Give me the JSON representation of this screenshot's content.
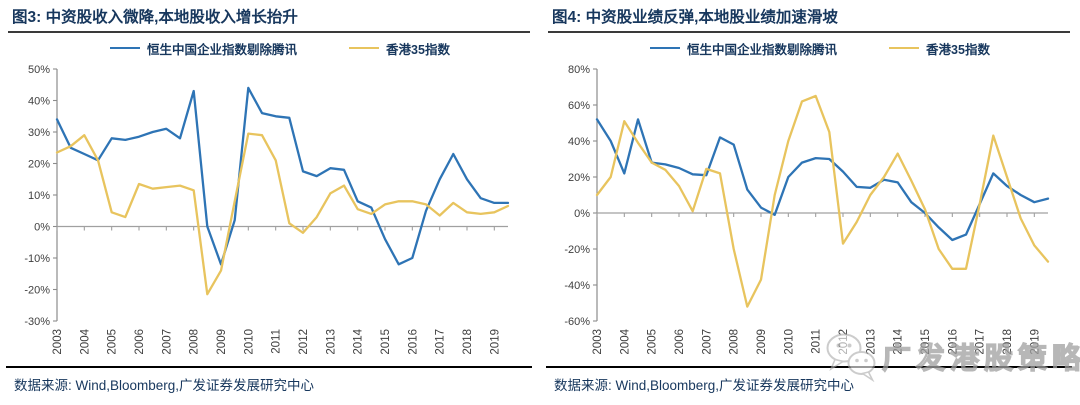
{
  "colors": {
    "blue_series": "#2E74B5",
    "yellow_series": "#E8C45E",
    "title_navy": "#17375D",
    "axis_line": "#8C8C8C",
    "zero_line": "#A0A0A0",
    "tick_label": "#3F3F3F",
    "separator_black": "#000000",
    "watermark_gray": "#9F9F9F"
  },
  "watermark": {
    "icon": "wechat-logo-icon",
    "text": "广发港股策略"
  },
  "chart_data": [
    {
      "type": "line",
      "title": "图3: 中资股收入微降,本地股收入增长抬升",
      "source": "数据来源: Wind,Bloomberg,广发证券发展研究中心",
      "legend_position": "top",
      "grid": false,
      "ylim": [
        -30,
        50
      ],
      "ystep": 10,
      "ytick_format": "percent",
      "x_tick_labels": [
        "2003",
        "2004",
        "2005",
        "2006",
        "2007",
        "2008",
        "2009",
        "2010",
        "2011",
        "2012",
        "2013",
        "2014",
        "2015",
        "2016",
        "2017",
        "2018",
        "2019"
      ],
      "x_periods": [
        "2003H1",
        "2003H2",
        "2004H1",
        "2004H2",
        "2005H1",
        "2005H2",
        "2006H1",
        "2006H2",
        "2007H1",
        "2007H2",
        "2008H1",
        "2008H2",
        "2009H1",
        "2009H2",
        "2010H1",
        "2010H2",
        "2011H1",
        "2011H2",
        "2012H1",
        "2012H2",
        "2013H1",
        "2013H2",
        "2014H1",
        "2014H2",
        "2015H1",
        "2015H2",
        "2016H1",
        "2016H2",
        "2017H1",
        "2017H2",
        "2018H1",
        "2018H2",
        "2019H1",
        "2019H2"
      ],
      "series": [
        {
          "name": "恒生中国企业指数剔除腾讯",
          "color": "#2E74B5",
          "values": [
            34,
            25,
            23,
            21,
            28,
            27.5,
            28.5,
            30,
            31,
            28,
            43,
            0,
            -12,
            2,
            44,
            36,
            35,
            34.5,
            17.5,
            16,
            18.5,
            18,
            8,
            6,
            -4,
            -12,
            -10,
            5,
            15,
            23,
            15,
            9,
            7.5,
            7.5
          ]
        },
        {
          "name": "香港35指数",
          "color": "#E8C45E",
          "values": [
            23.5,
            25.5,
            29,
            21,
            4.5,
            3,
            13.5,
            12,
            12.5,
            13,
            11.5,
            -21.5,
            -14,
            8,
            29.5,
            29,
            21,
            1,
            -2,
            3,
            10.5,
            13,
            5.5,
            4,
            7,
            8,
            8,
            7,
            3.5,
            7.5,
            4.5,
            4,
            4.5,
            6.5
          ]
        }
      ]
    },
    {
      "type": "line",
      "title": "图4: 中资股业绩反弹,本地股业绩加速滑坡",
      "source": "数据来源: Wind,Bloomberg,广发证券发展研究中心",
      "legend_position": "top",
      "grid": false,
      "ylim": [
        -60,
        80
      ],
      "ystep": 20,
      "ytick_format": "percent",
      "x_tick_labels": [
        "2003",
        "2004",
        "2005",
        "2006",
        "2007",
        "2008",
        "2009",
        "2010",
        "2011",
        "2012",
        "2013",
        "2014",
        "2015",
        "2016",
        "2017",
        "2018",
        "2019"
      ],
      "x_periods": [
        "2003H1",
        "2003H2",
        "2004H1",
        "2004H2",
        "2005H1",
        "2005H2",
        "2006H1",
        "2006H2",
        "2007H1",
        "2007H2",
        "2008H1",
        "2008H2",
        "2009H1",
        "2009H2",
        "2010H1",
        "2010H2",
        "2011H1",
        "2011H2",
        "2012H1",
        "2012H2",
        "2013H1",
        "2013H2",
        "2014H1",
        "2014H2",
        "2015H1",
        "2015H2",
        "2016H1",
        "2016H2",
        "2017H1",
        "2017H2",
        "2018H1",
        "2018H2",
        "2019H1",
        "2019H2"
      ],
      "series": [
        {
          "name": "恒生中国企业指数剔除腾讯",
          "color": "#2E74B5",
          "values": [
            52,
            40,
            22,
            52,
            28,
            27,
            25,
            21.5,
            21,
            42,
            38,
            13,
            3,
            -1,
            20,
            28,
            30.5,
            30,
            23,
            14.5,
            14,
            18.5,
            17,
            6,
            0,
            -8,
            -15,
            -12,
            5,
            22,
            15,
            10,
            6,
            8
          ]
        },
        {
          "name": "香港35指数",
          "color": "#E8C45E",
          "values": [
            10,
            20,
            51,
            39,
            28,
            24,
            15,
            1,
            24.5,
            22,
            -20,
            -52,
            -37,
            10,
            40,
            62,
            65,
            45,
            -17,
            -5,
            10,
            20,
            33,
            18,
            2,
            -20,
            -31,
            -31,
            5,
            43,
            20,
            -3,
            -18,
            -27
          ]
        }
      ]
    }
  ]
}
